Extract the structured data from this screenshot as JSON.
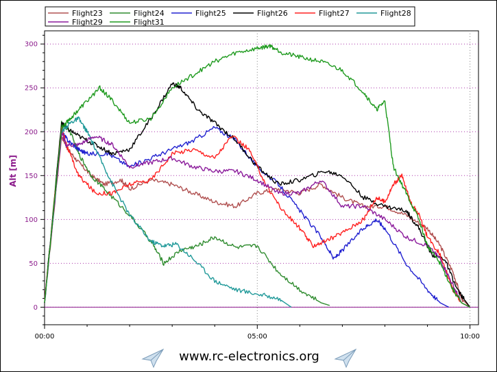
{
  "chart_data": {
    "type": "line",
    "ylabel": "Alt [m]",
    "xlabel": "",
    "x_unit": "minutes",
    "xlim": [
      0,
      10.2
    ],
    "ylim": [
      -20,
      315
    ],
    "x_ticks": [
      {
        "value": 0,
        "label": "00:00"
      },
      {
        "value": 5,
        "label": "05:00"
      },
      {
        "value": 10,
        "label": "10:00"
      }
    ],
    "y_ticks": [
      0,
      50,
      100,
      150,
      200,
      250,
      300
    ],
    "grid": true,
    "legend_position": "top-left",
    "series": [
      {
        "name": "Flight23",
        "color": "#b05050",
        "x": [
          0,
          0.4,
          0.55,
          0.8,
          1.1,
          1.4,
          1.8,
          2.0,
          2.5,
          3.0,
          3.5,
          4.0,
          4.5,
          5.0,
          5.5,
          6.0,
          6.5,
          7.0,
          7.5,
          8.0,
          8.5,
          9.0,
          9.3,
          9.6,
          9.8,
          10.0
        ],
        "y": [
          5,
          195,
          180,
          165,
          150,
          140,
          145,
          135,
          145,
          140,
          130,
          120,
          115,
          130,
          135,
          130,
          140,
          125,
          115,
          115,
          105,
          90,
          70,
          40,
          10,
          0
        ]
      },
      {
        "name": "Flight24",
        "color": "#2e8b2e",
        "x": [
          0,
          0.4,
          0.6,
          0.8,
          1.1,
          1.5,
          2.0,
          2.5,
          2.8,
          3.2,
          3.6,
          4.0,
          4.5,
          5.0,
          5.5,
          6.0,
          6.5,
          6.7
        ],
        "y": [
          5,
          210,
          200,
          175,
          150,
          130,
          105,
          75,
          50,
          65,
          70,
          80,
          68,
          70,
          40,
          20,
          5,
          2
        ]
      },
      {
        "name": "Flight25",
        "color": "#2020d0",
        "x": [
          0,
          0.4,
          0.55,
          0.8,
          1.0,
          1.5,
          2.0,
          2.5,
          3.0,
          3.5,
          4.0,
          4.5,
          5.0,
          5.5,
          6.0,
          6.5,
          6.8,
          7.0,
          7.5,
          7.8,
          8.0,
          8.5,
          9.0,
          9.3,
          9.5
        ],
        "y": [
          5,
          200,
          190,
          180,
          175,
          175,
          160,
          170,
          180,
          190,
          205,
          190,
          160,
          140,
          110,
          80,
          55,
          65,
          90,
          100,
          90,
          50,
          20,
          5,
          0
        ]
      },
      {
        "name": "Flight26",
        "color": "#000000",
        "x": [
          0,
          0.4,
          0.5,
          0.8,
          1.2,
          1.6,
          2.0,
          2.5,
          3.0,
          3.2,
          3.6,
          4.0,
          4.5,
          5.0,
          5.5,
          6.0,
          6.6,
          7.0,
          7.5,
          8.0,
          8.5,
          8.8,
          9.1,
          9.4,
          9.7,
          10.0
        ],
        "y": [
          5,
          210,
          205,
          195,
          185,
          175,
          180,
          215,
          255,
          250,
          225,
          210,
          190,
          160,
          140,
          145,
          155,
          150,
          125,
          115,
          110,
          90,
          60,
          55,
          20,
          0
        ]
      },
      {
        "name": "Flight27",
        "color": "#ff2020",
        "x": [
          0,
          0.4,
          0.55,
          0.8,
          1.2,
          1.6,
          2.0,
          2.5,
          3.0,
          3.5,
          4.0,
          4.4,
          4.8,
          5.2,
          5.6,
          6.0,
          6.3,
          6.6,
          7.0,
          7.5,
          7.8,
          8.0,
          8.2,
          8.4,
          8.6,
          8.8,
          9.0,
          9.3,
          9.6,
          9.8,
          10.0
        ],
        "y": [
          5,
          205,
          180,
          150,
          130,
          130,
          140,
          145,
          175,
          180,
          170,
          195,
          180,
          140,
          110,
          90,
          70,
          75,
          85,
          100,
          125,
          120,
          140,
          150,
          120,
          105,
          80,
          60,
          20,
          5,
          0
        ]
      },
      {
        "name": "Flight28",
        "color": "#209999",
        "x": [
          0,
          0.4,
          0.6,
          0.8,
          1.0,
          1.3,
          1.6,
          2.0,
          2.5,
          2.8,
          3.1,
          3.5,
          4.0,
          4.5,
          5.0,
          5.5,
          5.8
        ],
        "y": [
          5,
          200,
          210,
          215,
          200,
          170,
          140,
          105,
          75,
          70,
          72,
          55,
          30,
          20,
          15,
          10,
          0
        ]
      },
      {
        "name": "Flight29",
        "color": "#8b1a9b",
        "x": [
          0,
          0.4,
          0.5,
          0.8,
          1.2,
          1.6,
          2.0,
          2.5,
          3.0,
          3.5,
          4.0,
          4.5,
          5.0,
          5.5,
          6.0,
          6.5,
          7.0,
          7.5,
          8.0,
          8.5,
          9.0,
          9.3,
          9.6,
          9.8,
          10.0
        ],
        "y": [
          5,
          200,
          185,
          185,
          195,
          185,
          160,
          165,
          170,
          160,
          155,
          155,
          145,
          130,
          130,
          145,
          115,
          115,
          100,
          80,
          70,
          55,
          25,
          5,
          0
        ]
      },
      {
        "name": "Flight31",
        "color": "#1e9a1e",
        "x": [
          0,
          0.4,
          0.6,
          0.9,
          1.3,
          1.6,
          2.0,
          2.5,
          3.0,
          3.5,
          4.0,
          4.5,
          5.0,
          5.3,
          5.6,
          6.0,
          6.5,
          7.0,
          7.5,
          7.8,
          8.0,
          8.2,
          8.5,
          8.8,
          9.0,
          9.3,
          9.6,
          9.8,
          10.0
        ],
        "y": [
          5,
          205,
          215,
          230,
          250,
          235,
          210,
          215,
          250,
          265,
          280,
          290,
          295,
          298,
          290,
          285,
          280,
          270,
          245,
          225,
          235,
          160,
          130,
          100,
          70,
          50,
          20,
          5,
          0
        ]
      }
    ]
  },
  "footer": {
    "text": "www.rc-electronics.org",
    "left_icon": "paper-plane-icon",
    "right_icon": "paper-plane-icon"
  }
}
